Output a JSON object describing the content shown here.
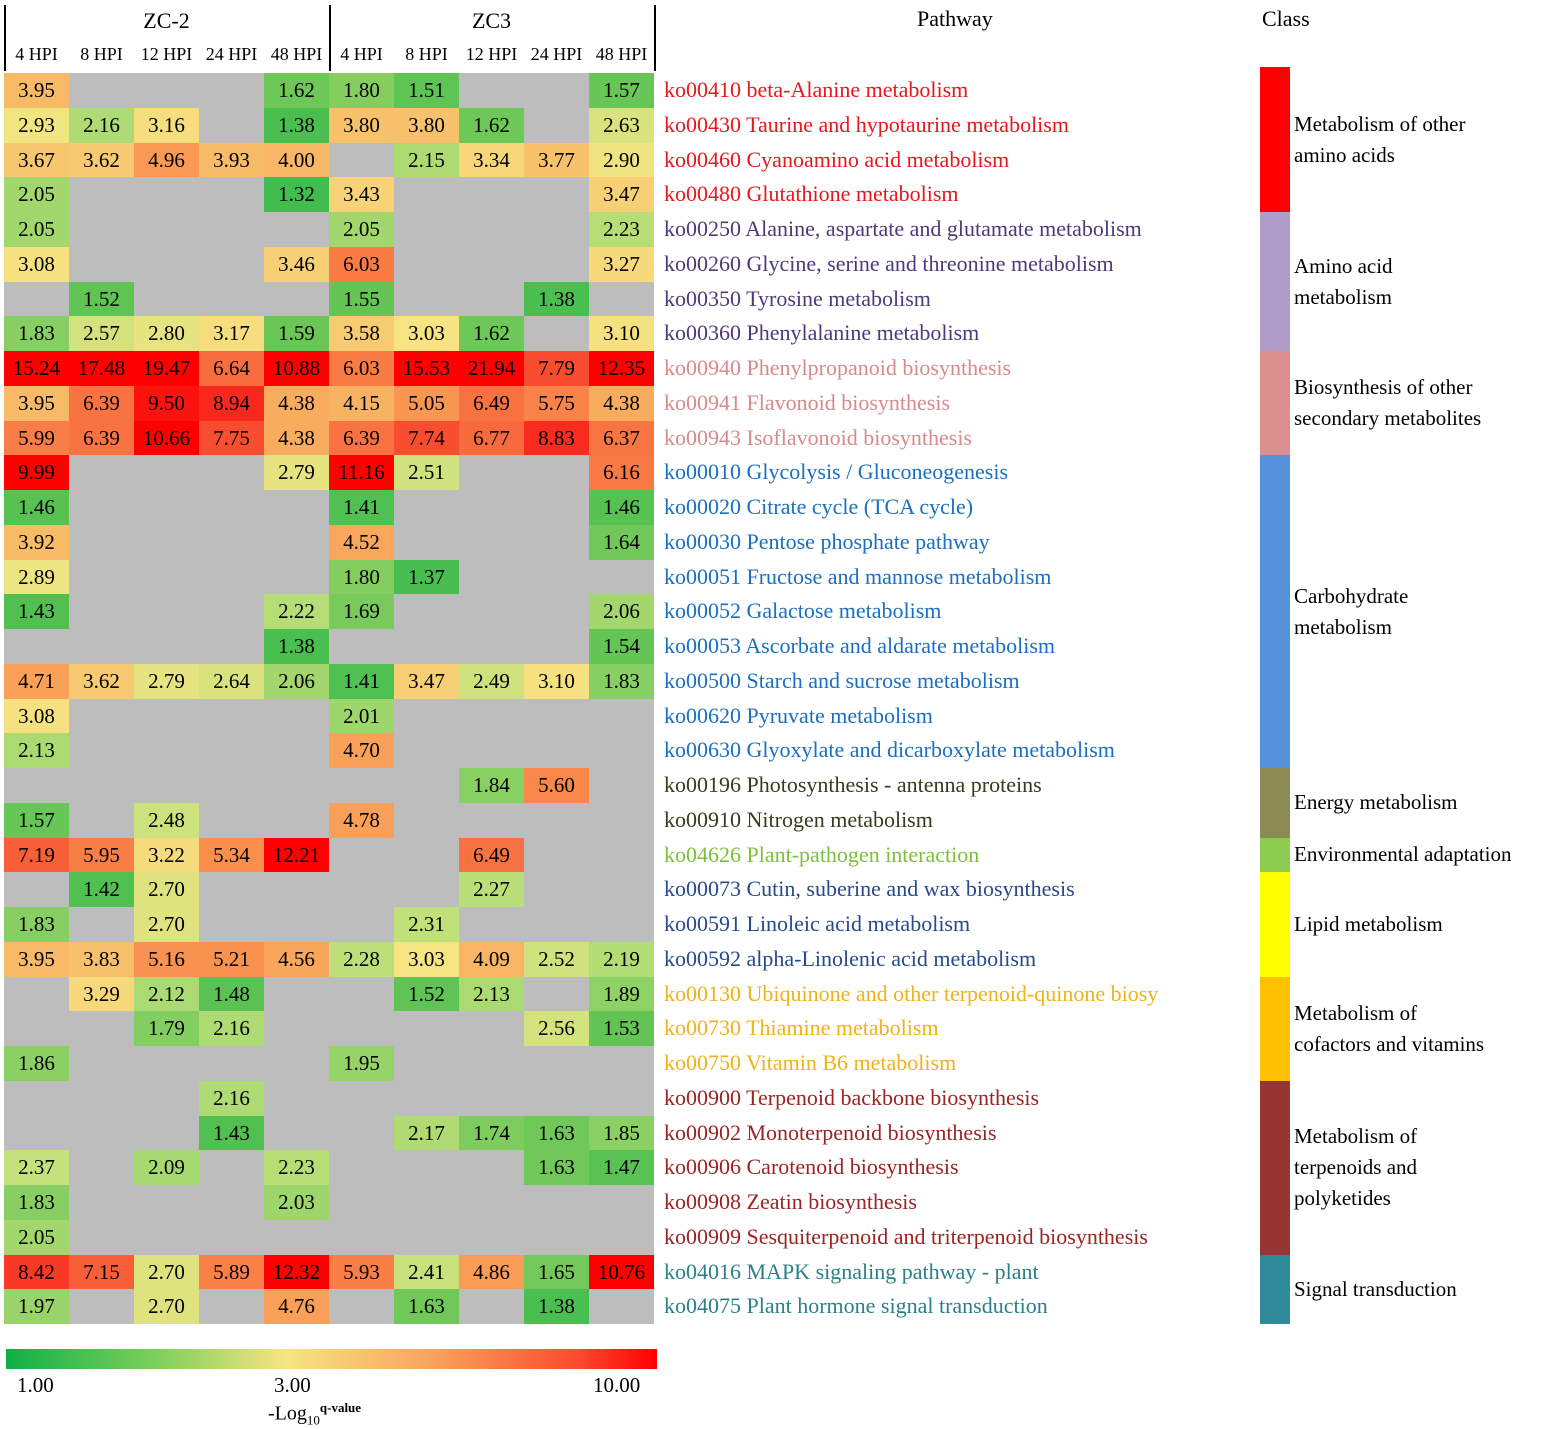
{
  "chart_data": {
    "type": "heatmap",
    "groups": [
      "ZC-2",
      "ZC3"
    ],
    "timepoints": [
      "4 HPI",
      "8 HPI",
      "12 HPI",
      "24 HPI",
      "48 HPI"
    ],
    "pathway_header": "Pathway",
    "class_header": "Class",
    "missing_cell_color": "#bdbdbd",
    "color_scale": {
      "colors": [
        "#10b046",
        "#f6e583",
        "#ff0000"
      ],
      "tick_labels": [
        "1.00",
        "3.00",
        "10.00"
      ],
      "values": [
        1,
        3,
        10
      ]
    },
    "legend_title": {
      "main": "-Log",
      "sub": "10",
      "sup": "q-value"
    },
    "rows": [
      {
        "pathway": "ko00410 beta-Alanine metabolism",
        "color": "#e8171c",
        "values": [
          "3.95",
          null,
          null,
          null,
          "1.62",
          "1.80",
          "1.51",
          null,
          null,
          "1.57"
        ]
      },
      {
        "pathway": "ko00430 Taurine and hypotaurine metabolism",
        "color": "#e8171c",
        "values": [
          "2.93",
          "2.16",
          "3.16",
          null,
          "1.38",
          "3.80",
          "3.80",
          "1.62",
          null,
          "2.63"
        ]
      },
      {
        "pathway": "ko00460 Cyanoamino acid metabolism",
        "color": "#e8171c",
        "values": [
          "3.67",
          "3.62",
          "4.96",
          "3.93",
          "4.00",
          null,
          "2.15",
          "3.34",
          "3.77",
          "2.90"
        ]
      },
      {
        "pathway": "ko00480 Glutathione metabolism",
        "color": "#e8171c",
        "values": [
          "2.05",
          null,
          null,
          null,
          "1.32",
          "3.43",
          null,
          null,
          null,
          "3.47"
        ]
      },
      {
        "pathway": "ko00250 Alanine, aspartate and glutamate metabolism",
        "color": "#4d3a7a",
        "values": [
          "2.05",
          null,
          null,
          null,
          null,
          "2.05",
          null,
          null,
          null,
          "2.23"
        ]
      },
      {
        "pathway": "ko00260 Glycine, serine and threonine metabolism",
        "color": "#4d3a7a",
        "values": [
          "3.08",
          null,
          null,
          null,
          "3.46",
          "6.03",
          null,
          null,
          null,
          "3.27"
        ]
      },
      {
        "pathway": "ko00350 Tyrosine metabolism",
        "color": "#4d3a7a",
        "values": [
          null,
          "1.52",
          null,
          null,
          null,
          "1.55",
          null,
          null,
          "1.38",
          null
        ]
      },
      {
        "pathway": "ko00360 Phenylalanine metabolism",
        "color": "#4d3a7a",
        "values": [
          "1.83",
          "2.57",
          "2.80",
          "3.17",
          "1.59",
          "3.58",
          "3.03",
          "1.62",
          null,
          "3.10"
        ]
      },
      {
        "pathway": "ko00940 Phenylpropanoid biosynthesis",
        "color": "#d88a8a",
        "values": [
          "15.24",
          "17.48",
          "19.47",
          "6.64",
          "10.88",
          "6.03",
          "15.53",
          "21.94",
          "7.79",
          "12.35"
        ]
      },
      {
        "pathway": "ko00941 Flavonoid biosynthesis",
        "color": "#d88a8a",
        "values": [
          "3.95",
          "6.39",
          "9.50",
          "8.94",
          "4.38",
          "4.15",
          "5.05",
          "6.49",
          "5.75",
          "4.38"
        ]
      },
      {
        "pathway": "ko00943 Isoflavonoid biosynthesis",
        "color": "#d88a8a",
        "values": [
          "5.99",
          "6.39",
          "10.66",
          "7.75",
          "4.38",
          "6.39",
          "7.74",
          "6.77",
          "8.83",
          "6.37"
        ]
      },
      {
        "pathway": "ko00010 Glycolysis / Gluconeogenesis",
        "color": "#1a6fc0",
        "values": [
          "9.99",
          null,
          null,
          null,
          "2.79",
          "11.16",
          "2.51",
          null,
          null,
          "6.16"
        ]
      },
      {
        "pathway": "ko00020 Citrate cycle (TCA cycle)",
        "color": "#1a6fc0",
        "values": [
          "1.46",
          null,
          null,
          null,
          null,
          "1.41",
          null,
          null,
          null,
          "1.46"
        ]
      },
      {
        "pathway": "ko00030 Pentose phosphate pathway",
        "color": "#1a6fc0",
        "values": [
          "3.92",
          null,
          null,
          null,
          null,
          "4.52",
          null,
          null,
          null,
          "1.64"
        ]
      },
      {
        "pathway": "ko00051 Fructose and mannose metabolism",
        "color": "#1a6fc0",
        "values": [
          "2.89",
          null,
          null,
          null,
          null,
          "1.80",
          "1.37",
          null,
          null,
          null
        ]
      },
      {
        "pathway": "ko00052 Galactose metabolism",
        "color": "#1a6fc0",
        "values": [
          "1.43",
          null,
          null,
          null,
          "2.22",
          "1.69",
          null,
          null,
          null,
          "2.06"
        ]
      },
      {
        "pathway": "ko00053 Ascorbate and aldarate metabolism",
        "color": "#1a6fc0",
        "values": [
          null,
          null,
          null,
          null,
          "1.38",
          null,
          null,
          null,
          null,
          "1.54"
        ]
      },
      {
        "pathway": "ko00500 Starch and sucrose metabolism",
        "color": "#1a6fc0",
        "values": [
          "4.71",
          "3.62",
          "2.79",
          "2.64",
          "2.06",
          "1.41",
          "3.47",
          "2.49",
          "3.10",
          "1.83"
        ]
      },
      {
        "pathway": "ko00620 Pyruvate metabolism",
        "color": "#1a6fc0",
        "values": [
          "3.08",
          null,
          null,
          null,
          null,
          "2.01",
          null,
          null,
          null,
          null
        ]
      },
      {
        "pathway": "ko00630 Glyoxylate and dicarboxylate metabolism",
        "color": "#1a6fc0",
        "values": [
          "2.13",
          null,
          null,
          null,
          null,
          "4.70",
          null,
          null,
          null,
          null
        ]
      },
      {
        "pathway": "ko00196 Photosynthesis - antenna proteins",
        "color": "#3a3a1c",
        "values": [
          null,
          null,
          null,
          null,
          null,
          null,
          null,
          "1.84",
          "5.60",
          null
        ]
      },
      {
        "pathway": "ko00910 Nitrogen metabolism",
        "color": "#3a3a1c",
        "values": [
          "1.57",
          null,
          "2.48",
          null,
          null,
          "4.78",
          null,
          null,
          null,
          null
        ]
      },
      {
        "pathway": "ko04626 Plant-pathogen interaction",
        "color": "#7cbf3c",
        "values": [
          "7.19",
          "5.95",
          "3.22",
          "5.34",
          "12.21",
          null,
          null,
          "6.49",
          null,
          null
        ]
      },
      {
        "pathway": "ko00073 Cutin, suberine and wax biosynthesis",
        "color": "#274a8c",
        "values": [
          null,
          "1.42",
          "2.70",
          null,
          null,
          null,
          null,
          "2.27",
          null,
          null
        ]
      },
      {
        "pathway": "ko00591 Linoleic acid metabolism",
        "color": "#274a8c",
        "values": [
          "1.83",
          null,
          "2.70",
          null,
          null,
          null,
          "2.31",
          null,
          null,
          null
        ]
      },
      {
        "pathway": "ko00592 alpha-Linolenic acid metabolism",
        "color": "#274a8c",
        "values": [
          "3.95",
          "3.83",
          "5.16",
          "5.21",
          "4.56",
          "2.28",
          "3.03",
          "4.09",
          "2.52",
          "2.19"
        ]
      },
      {
        "pathway": "ko00130 Ubiquinone and other terpenoid-quinone biosy",
        "color": "#f0b21a",
        "values": [
          null,
          "3.29",
          "2.12",
          "1.48",
          null,
          null,
          "1.52",
          "2.13",
          null,
          "1.89"
        ]
      },
      {
        "pathway": "ko00730 Thiamine metabolism",
        "color": "#f0b21a",
        "values": [
          null,
          null,
          "1.79",
          "2.16",
          null,
          null,
          null,
          null,
          "2.56",
          "1.53"
        ]
      },
      {
        "pathway": "ko00750 Vitamin B6 metabolism",
        "color": "#f0b21a",
        "values": [
          "1.86",
          null,
          null,
          null,
          null,
          "1.95",
          null,
          null,
          null,
          null
        ]
      },
      {
        "pathway": "ko00900 Terpenoid backbone biosynthesis",
        "color": "#9c2323",
        "values": [
          null,
          null,
          null,
          "2.16",
          null,
          null,
          null,
          null,
          null,
          null
        ]
      },
      {
        "pathway": "ko00902 Monoterpenoid biosynthesis",
        "color": "#9c2323",
        "values": [
          null,
          null,
          null,
          "1.43",
          null,
          null,
          "2.17",
          "1.74",
          "1.63",
          "1.85"
        ]
      },
      {
        "pathway": "ko00906 Carotenoid biosynthesis",
        "color": "#9c2323",
        "values": [
          "2.37",
          null,
          "2.09",
          null,
          "2.23",
          null,
          null,
          null,
          "1.63",
          "1.47"
        ]
      },
      {
        "pathway": "ko00908 Zeatin biosynthesis",
        "color": "#9c2323",
        "values": [
          "1.83",
          null,
          null,
          null,
          "2.03",
          null,
          null,
          null,
          null,
          null
        ]
      },
      {
        "pathway": "ko00909 Sesquiterpenoid and triterpenoid biosynthesis",
        "color": "#9c2323",
        "values": [
          "2.05",
          null,
          null,
          null,
          null,
          null,
          null,
          null,
          null,
          null
        ]
      },
      {
        "pathway": "ko04016 MAPK signaling pathway - plant",
        "color": "#2b7f8a",
        "values": [
          "8.42",
          "7.15",
          "2.70",
          "5.89",
          "12.32",
          "5.93",
          "2.41",
          "4.86",
          "1.65",
          "10.76"
        ]
      },
      {
        "pathway": "ko04075 Plant hormone signal transduction",
        "color": "#2b7f8a",
        "values": [
          "1.97",
          null,
          "2.70",
          null,
          "4.76",
          null,
          "1.63",
          null,
          "1.38",
          null
        ]
      }
    ],
    "classes": [
      {
        "label_lines": [
          "Metabolism of other",
          "amino acids"
        ],
        "color": "#ff0000",
        "start_row": 0,
        "row_count": 4
      },
      {
        "label_lines": [
          "Amino acid",
          "metabolism"
        ],
        "color": "#b09cc8",
        "start_row": 4,
        "row_count": 4
      },
      {
        "label_lines": [
          "Biosynthesis of other",
          "secondary metabolites"
        ],
        "color": "#dc8f8f",
        "start_row": 8,
        "row_count": 3
      },
      {
        "label_lines": [
          "Carbohydrate",
          "metabolism"
        ],
        "color": "#5591d8",
        "start_row": 11,
        "row_count": 9
      },
      {
        "label_lines": [
          "Energy metabolism"
        ],
        "color": "#8a8a55",
        "start_row": 20,
        "row_count": 2
      },
      {
        "label_lines": [
          "Environmental adaptation"
        ],
        "color": "#8ccc50",
        "start_row": 22,
        "row_count": 1
      },
      {
        "label_lines": [
          "Lipid metabolism"
        ],
        "color": "#ffff00",
        "start_row": 23,
        "row_count": 3
      },
      {
        "label_lines": [
          "Metabolism of",
          "cofactors and vitamins"
        ],
        "color": "#ffc000",
        "start_row": 26,
        "row_count": 3
      },
      {
        "label_lines": [
          "Metabolism of",
          "terpenoids and",
          "polyketides"
        ],
        "color": "#963532",
        "start_row": 29,
        "row_count": 5
      },
      {
        "label_lines": [
          "Signal transduction"
        ],
        "color": "#2f8a99",
        "start_row": 34,
        "row_count": 2
      }
    ]
  }
}
